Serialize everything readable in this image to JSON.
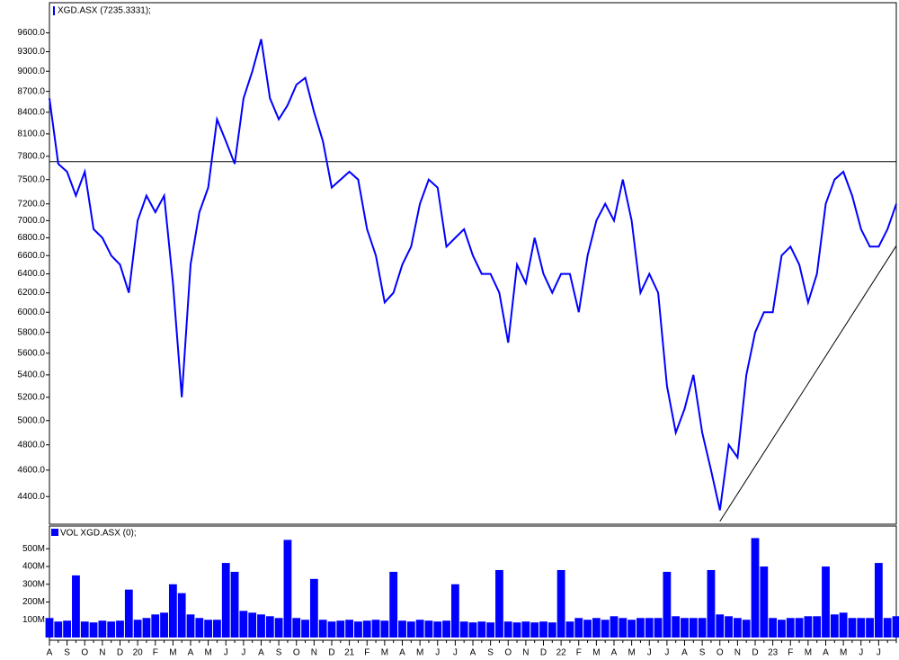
{
  "chart_data": [
    {
      "type": "line",
      "log_scale": true,
      "series": [
        {
          "name": "XGD.ASX (7235.3331);",
          "color": "#0000ff",
          "values": [
            8600,
            7700,
            7600,
            7300,
            7600,
            6900,
            6800,
            6600,
            6500,
            6200,
            7000,
            7300,
            7100,
            7300,
            6300,
            5200,
            6500,
            7100,
            7400,
            8300,
            8000,
            7700,
            8600,
            9000,
            9500,
            8600,
            8300,
            8500,
            8800,
            8900,
            8400,
            8000,
            7400,
            7500,
            7600,
            7500,
            6900,
            6600,
            6100,
            6200,
            6500,
            6700,
            7200,
            7500,
            7400,
            6700,
            6800,
            6900,
            6600,
            6400,
            6400,
            6200,
            5700,
            6500,
            6300,
            6800,
            6400,
            6200,
            6400,
            6400,
            6000,
            6600,
            7000,
            7200,
            7000,
            7500,
            7000,
            6200,
            6400,
            6200,
            5300,
            4900,
            5100,
            5400,
            4900,
            4600,
            4300,
            4800,
            4700,
            5400,
            5800,
            6000,
            6000,
            6600,
            6700,
            6500,
            6100,
            6400,
            7200,
            7500,
            7600,
            7300,
            6900,
            6700,
            6700,
            6900,
            7200
          ]
        }
      ],
      "ylim": [
        4200,
        10100
      ],
      "yticks": [
        {
          "value": 9600,
          "label": "9600.0"
        },
        {
          "value": 9300,
          "label": "9300.0"
        },
        {
          "value": 9000,
          "label": "9000.0"
        },
        {
          "value": 8700,
          "label": "8700.0"
        },
        {
          "value": 8400,
          "label": "8400.0"
        },
        {
          "value": 8100,
          "label": "8100.0"
        },
        {
          "value": 7800,
          "label": "7800.0"
        },
        {
          "value": 7500,
          "label": "7500.0"
        },
        {
          "value": 7200,
          "label": "7200.0"
        },
        {
          "value": 7000,
          "label": "7000.0"
        },
        {
          "value": 6800,
          "label": "6800.0"
        },
        {
          "value": 6600,
          "label": "6600.0"
        },
        {
          "value": 6400,
          "label": "6400.0"
        },
        {
          "value": 6200,
          "label": "6200.0"
        },
        {
          "value": 6000,
          "label": "6000.0"
        },
        {
          "value": 5800,
          "label": "5800.0"
        },
        {
          "value": 5600,
          "label": "5600.0"
        },
        {
          "value": 5400,
          "label": "5400.0"
        },
        {
          "value": 5200,
          "label": "5200.0"
        },
        {
          "value": 5000,
          "label": "5000.0"
        },
        {
          "value": 4800,
          "label": "4800.0"
        },
        {
          "value": 4600,
          "label": "4600.0"
        },
        {
          "value": 4400,
          "label": "4400.0"
        }
      ],
      "hline": 7730,
      "trendline": {
        "x": [
          76,
          96
        ],
        "y": [
          4220,
          6710
        ]
      }
    },
    {
      "type": "bar",
      "categories": [
        "A",
        null,
        "S",
        null,
        "O",
        null,
        "N",
        null,
        "D",
        null,
        "20",
        null,
        "F",
        null,
        "M",
        null,
        "A",
        null,
        "M",
        null,
        "J",
        null,
        "J",
        null,
        "A",
        null,
        "S",
        null,
        "O",
        null,
        "N",
        null,
        "D",
        null,
        "21",
        null,
        "F",
        null,
        "M",
        null,
        "A",
        null,
        "M",
        null,
        "J",
        null,
        "J",
        null,
        "A",
        null,
        "S",
        null,
        "O",
        null,
        "N",
        null,
        "D",
        null,
        "22",
        null,
        "F",
        null,
        "M",
        null,
        "A",
        null,
        "M",
        null,
        "J",
        null,
        "J",
        null,
        "A",
        null,
        "S",
        null,
        "O",
        null,
        "N",
        null,
        "D",
        null,
        "23",
        null,
        "F",
        null,
        "M",
        null,
        "A",
        null,
        "M",
        null,
        "J",
        null,
        "J",
        null,
        null
      ],
      "series": [
        {
          "name": "VOL XGD.ASX (0);",
          "color": "#0000ff",
          "values": [
            110000000,
            90000000,
            95000000,
            350000000,
            90000000,
            85000000,
            95000000,
            90000000,
            95000000,
            270000000,
            100000000,
            110000000,
            130000000,
            140000000,
            300000000,
            250000000,
            130000000,
            110000000,
            100000000,
            100000000,
            420000000,
            370000000,
            150000000,
            140000000,
            130000000,
            120000000,
            110000000,
            550000000,
            110000000,
            100000000,
            330000000,
            100000000,
            90000000,
            95000000,
            100000000,
            90000000,
            95000000,
            100000000,
            95000000,
            370000000,
            95000000,
            90000000,
            100000000,
            95000000,
            90000000,
            95000000,
            300000000,
            90000000,
            85000000,
            90000000,
            85000000,
            380000000,
            90000000,
            85000000,
            90000000,
            85000000,
            90000000,
            85000000,
            380000000,
            90000000,
            110000000,
            100000000,
            110000000,
            100000000,
            120000000,
            110000000,
            100000000,
            110000000,
            110000000,
            110000000,
            370000000,
            120000000,
            110000000,
            110000000,
            110000000,
            380000000,
            130000000,
            120000000,
            110000000,
            100000000,
            560000000,
            400000000,
            110000000,
            100000000,
            110000000,
            110000000,
            120000000,
            120000000,
            400000000,
            130000000,
            140000000,
            110000000,
            110000000,
            110000000,
            420000000,
            110000000,
            120000000
          ]
        }
      ],
      "ylim": [
        0,
        628000000
      ],
      "yticks": [
        {
          "value": 500000000,
          "label": "500M"
        },
        {
          "value": 400000000,
          "label": "400M"
        },
        {
          "value": 300000000,
          "label": "300M"
        },
        {
          "value": 200000000,
          "label": "200M"
        },
        {
          "value": 100000000,
          "label": "100M"
        }
      ]
    }
  ]
}
